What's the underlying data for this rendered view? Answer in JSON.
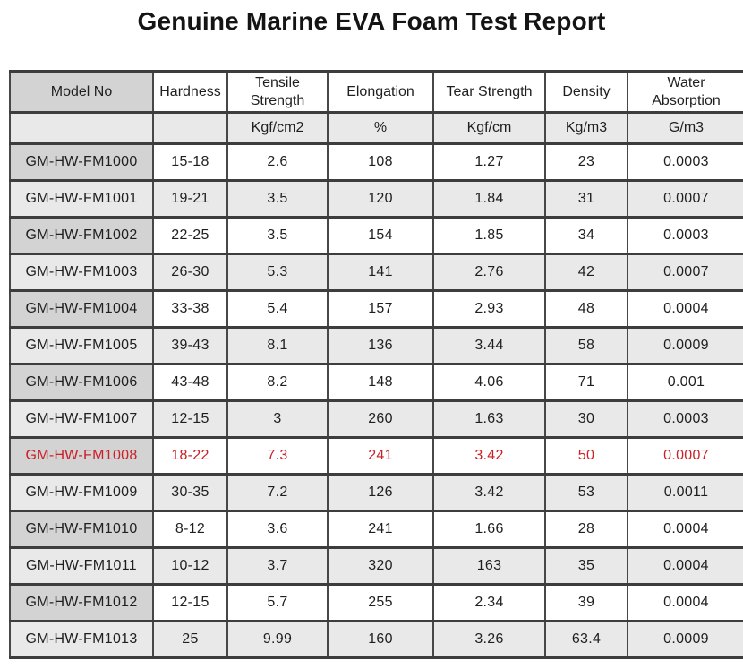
{
  "title": "Genuine Marine EVA Foam Test Report",
  "table": {
    "headers": [
      "Model No",
      "Hardness",
      "Tensile Strength",
      "Elongation",
      "Tear Strength",
      "Density",
      "Water Absorption"
    ],
    "units": [
      "",
      "",
      "Kgf/cm2",
      "%",
      "Kgf/cm",
      "Kg/m3",
      "G/m3"
    ],
    "rows": [
      {
        "cells": [
          "GM-HW-FM1000",
          "15-18",
          "2.6",
          "108",
          "1.27",
          "23",
          "0.0003"
        ],
        "highlight": false
      },
      {
        "cells": [
          "GM-HW-FM1001",
          "19-21",
          "3.5",
          "120",
          "1.84",
          "31",
          "0.0007"
        ],
        "highlight": false
      },
      {
        "cells": [
          "GM-HW-FM1002",
          "22-25",
          "3.5",
          "154",
          "1.85",
          "34",
          "0.0003"
        ],
        "highlight": false
      },
      {
        "cells": [
          "GM-HW-FM1003",
          "26-30",
          "5.3",
          "141",
          "2.76",
          "42",
          "0.0007"
        ],
        "highlight": false
      },
      {
        "cells": [
          "GM-HW-FM1004",
          "33-38",
          "5.4",
          "157",
          "2.93",
          "48",
          "0.0004"
        ],
        "highlight": false
      },
      {
        "cells": [
          "GM-HW-FM1005",
          "39-43",
          "8.1",
          "136",
          "3.44",
          "58",
          "0.0009"
        ],
        "highlight": false
      },
      {
        "cells": [
          "GM-HW-FM1006",
          "43-48",
          "8.2",
          "148",
          "4.06",
          "71",
          "0.001"
        ],
        "highlight": false
      },
      {
        "cells": [
          "GM-HW-FM1007",
          "12-15",
          "3",
          "260",
          "1.63",
          "30",
          "0.0003"
        ],
        "highlight": false
      },
      {
        "cells": [
          "GM-HW-FM1008",
          "18-22",
          "7.3",
          "241",
          "3.42",
          "50",
          "0.0007"
        ],
        "highlight": true
      },
      {
        "cells": [
          "GM-HW-FM1009",
          "30-35",
          "7.2",
          "126",
          "3.42",
          "53",
          "0.0011"
        ],
        "highlight": false
      },
      {
        "cells": [
          "GM-HW-FM1010",
          "8-12",
          "3.6",
          "241",
          "1.66",
          "28",
          "0.0004"
        ],
        "highlight": false
      },
      {
        "cells": [
          "GM-HW-FM1011",
          "10-12",
          "3.7",
          "320",
          "163",
          "35",
          "0.0004"
        ],
        "highlight": false
      },
      {
        "cells": [
          "GM-HW-FM1012",
          "12-15",
          "5.7",
          "255",
          "2.34",
          "39",
          "0.0004"
        ],
        "highlight": false
      },
      {
        "cells": [
          "GM-HW-FM1013",
          "25",
          "9.99",
          "160",
          "3.26",
          "63.4",
          "0.0009"
        ],
        "highlight": false
      }
    ]
  },
  "colors": {
    "highlight_text": "#cb2027",
    "model_column_dark": "#d3d3d3",
    "row_alternate": "#e9e9e9",
    "border": "#3d3d3d",
    "background": "#ffffff"
  }
}
